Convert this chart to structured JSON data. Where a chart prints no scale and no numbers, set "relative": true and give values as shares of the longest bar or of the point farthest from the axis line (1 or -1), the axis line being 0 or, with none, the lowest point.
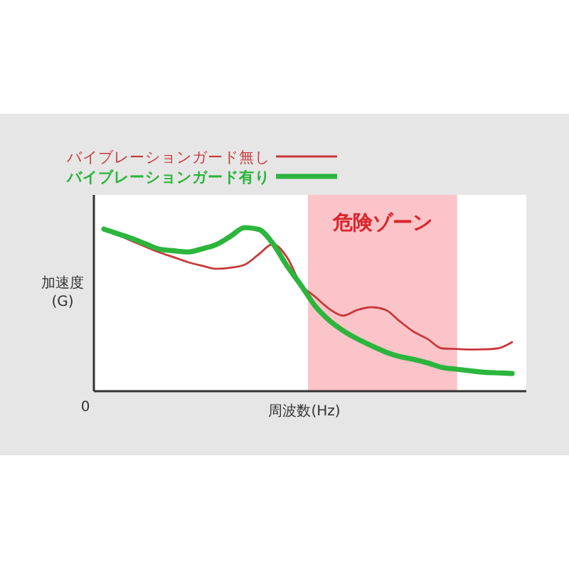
{
  "chart_data": {
    "type": "line",
    "relative": true,
    "xlabel": "周波数(Hz)",
    "ylabel": "加速度\n(G)",
    "legend": "top left",
    "annotations": [
      "0",
      "危険ゾーン"
    ],
    "categories": [
      null,
      null,
      null,
      null,
      null,
      null,
      null,
      null,
      null,
      null,
      null,
      null,
      null,
      null,
      null,
      null,
      null,
      null,
      null,
      null,
      null,
      null,
      null,
      null,
      null,
      null,
      null,
      null,
      null,
      null
    ],
    "series": [
      {
        "name": "バイブレーションガード無し",
        "color": "#c8383a",
        "values": [
          0.991,
          0.955,
          0.918,
          0.882,
          0.847,
          0.818,
          0.788,
          0.767,
          0.748,
          0.755,
          0.773,
          0.836,
          0.899,
          0.82,
          0.653,
          0.578,
          0.504,
          0.462,
          0.496,
          0.514,
          0.498,
          0.429,
          0.364,
          0.319,
          0.262,
          0.258,
          0.255,
          0.256,
          0.262,
          0.3
        ]
      },
      {
        "name": "バイブレーションガード有り",
        "color": "#2bb53c",
        "values": [
          0.991,
          0.962,
          0.933,
          0.899,
          0.867,
          0.858,
          0.851,
          0.871,
          0.897,
          0.947,
          1.0,
          0.989,
          0.903,
          0.767,
          0.648,
          0.522,
          0.434,
          0.37,
          0.32,
          0.278,
          0.24,
          0.212,
          0.195,
          0.173,
          0.146,
          0.135,
          0.125,
          0.116,
          0.112,
          0.108
        ]
      }
    ]
  }
}
